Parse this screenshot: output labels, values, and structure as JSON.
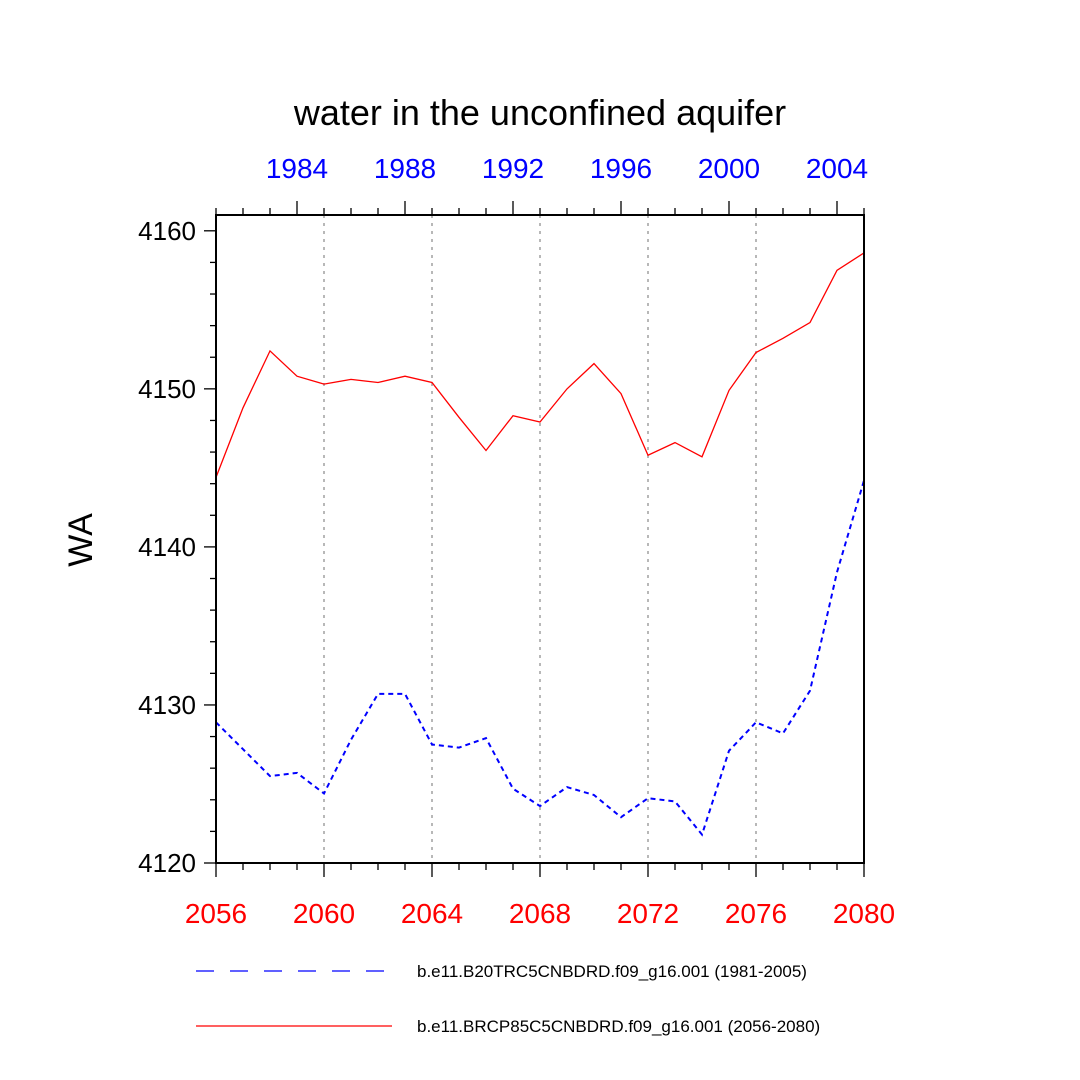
{
  "chart_data": {
    "type": "line",
    "title": "water in the unconfined aquifer",
    "ylabel": "WA",
    "xlabel": "",
    "ylim": [
      4120,
      4160
    ],
    "yticks": [
      4120,
      4130,
      4140,
      4150,
      4160
    ],
    "y_minor_step": 2,
    "x_bottom": {
      "range": [
        2056,
        2080
      ],
      "ticks": [
        "2056",
        "2060",
        "2064",
        "2068",
        "2072",
        "2076",
        "2080"
      ],
      "color": "#ff0000"
    },
    "x_top": {
      "range": [
        1981,
        2005
      ],
      "ticks": [
        "1984",
        "1988",
        "1992",
        "1996",
        "2000",
        "2004"
      ],
      "color": "#0000ff"
    },
    "grid": "vertical dotted at major bottom ticks",
    "legend_position": "bottom",
    "series": [
      {
        "name": "b.e11.B20TRC5CNBDRD.f09_g16.001 (1981-2005)",
        "axis": "top",
        "color": "#0000ff",
        "style": "dashed",
        "x": [
          1981,
          1982,
          1983,
          1984,
          1985,
          1986,
          1987,
          1988,
          1989,
          1990,
          1991,
          1992,
          1993,
          1994,
          1995,
          1996,
          1997,
          1998,
          1999,
          2000,
          2001,
          2002,
          2003,
          2004,
          2005
        ],
        "values": [
          4128.9,
          4127.2,
          4125.5,
          4125.7,
          4124.4,
          4127.8,
          4130.7,
          4130.7,
          4127.5,
          4127.3,
          4127.9,
          4124.7,
          4123.6,
          4124.8,
          4124.3,
          4122.9,
          4124.1,
          4123.9,
          4121.8,
          4127.1,
          4128.9,
          4128.2,
          4130.9,
          4138.4,
          4144.2
        ]
      },
      {
        "name": "b.e11.BRCP85C5CNBDRD.f09_g16.001 (2056-2080)",
        "axis": "bottom",
        "color": "#ff0000",
        "style": "solid",
        "x": [
          2056,
          2057,
          2058,
          2059,
          2060,
          2061,
          2062,
          2063,
          2064,
          2065,
          2066,
          2067,
          2068,
          2069,
          2070,
          2071,
          2072,
          2073,
          2074,
          2075,
          2076,
          2077,
          2078,
          2079,
          2080
        ],
        "values": [
          4144.4,
          4148.8,
          4152.4,
          4150.8,
          4150.3,
          4150.6,
          4150.4,
          4150.8,
          4150.4,
          4148.2,
          4146.1,
          4148.3,
          4147.9,
          4150.0,
          4151.6,
          4149.7,
          4145.8,
          4146.6,
          4145.7,
          4149.9,
          4152.3,
          4153.2,
          4154.2,
          4157.5,
          4158.6
        ]
      }
    ]
  }
}
